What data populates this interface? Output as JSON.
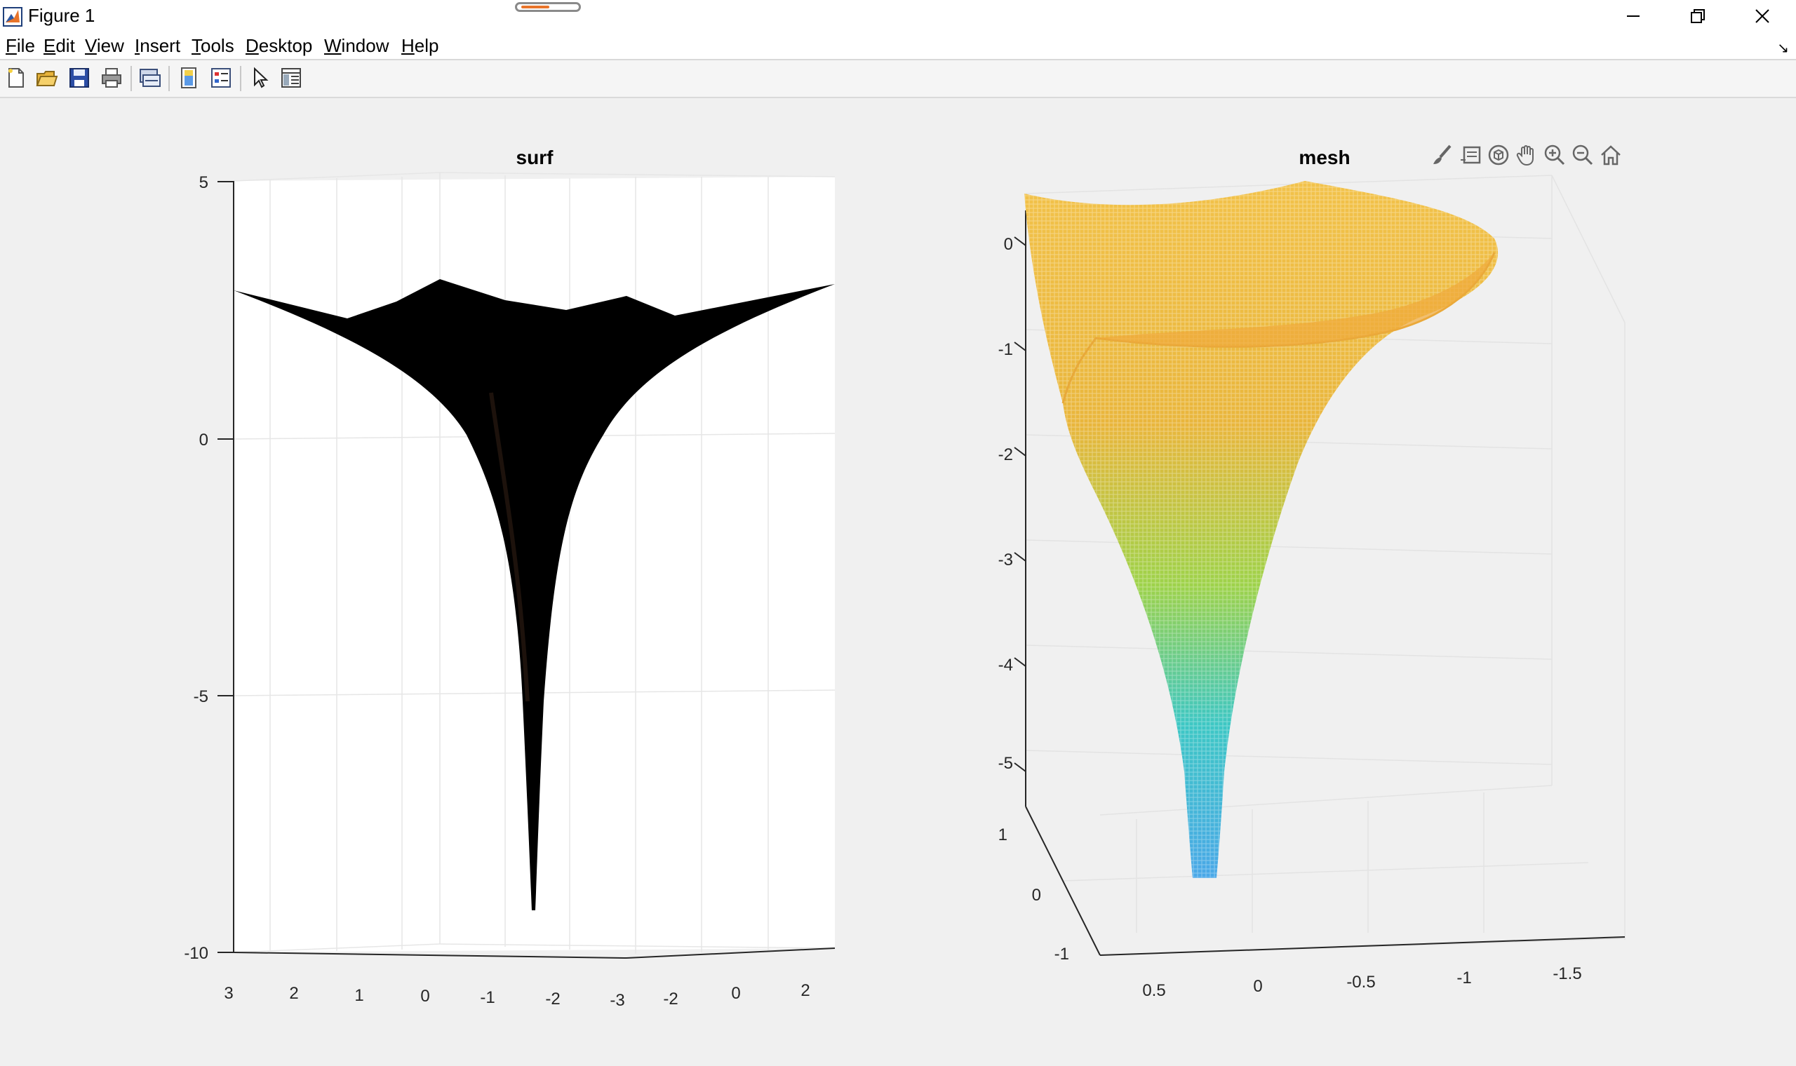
{
  "window": {
    "title": "Figure 1"
  },
  "menu": [
    {
      "label": "File",
      "key": "F",
      "rest": "ile"
    },
    {
      "label": "Edit",
      "key": "E",
      "rest": "dit"
    },
    {
      "label": "View",
      "key": "V",
      "rest": "iew"
    },
    {
      "label": "Insert",
      "key": "I",
      "rest": "nsert"
    },
    {
      "label": "Tools",
      "key": "T",
      "rest": "ools"
    },
    {
      "label": "Desktop",
      "key": "D",
      "rest": "esktop"
    },
    {
      "label": "Window",
      "key": "W",
      "rest": "indow"
    },
    {
      "label": "Help",
      "key": "H",
      "rest": "elp"
    }
  ],
  "toolbar": [
    "new-figure-icon",
    "open-file-icon",
    "save-icon",
    "print-icon",
    "link-plot-icon",
    "colorbar-icon",
    "legend-icon",
    "pointer-icon",
    "property-inspector-icon"
  ],
  "axes_toolbar": [
    "brush-icon",
    "data-tips-icon",
    "rotate-3d-icon",
    "pan-icon",
    "zoom-in-icon",
    "zoom-out-icon",
    "home-icon"
  ],
  "colors": {
    "surf_fill": "#000000",
    "mesh_top": "#f2b33a",
    "mesh_mid": "#9ed24a",
    "mesh_low": "#3ec7c4",
    "mesh_bottom": "#4aa8e8",
    "accent": "#e8742a"
  },
  "plots": {
    "surf": {
      "title": "surf",
      "zticks": [
        "5",
        "0",
        "-5",
        "-10"
      ],
      "xticks": [
        "3",
        "2",
        "1",
        "0",
        "-1",
        "-2",
        "-3"
      ],
      "yticks": [
        "-2",
        "0",
        "2"
      ]
    },
    "mesh": {
      "title": "mesh",
      "zticks": [
        "0",
        "-1",
        "-2",
        "-3",
        "-4",
        "-5"
      ],
      "yticks": [
        "1",
        "0",
        "-1"
      ],
      "xticks": [
        "0.5",
        "0",
        "-0.5",
        "-1",
        "-1.5"
      ]
    }
  }
}
